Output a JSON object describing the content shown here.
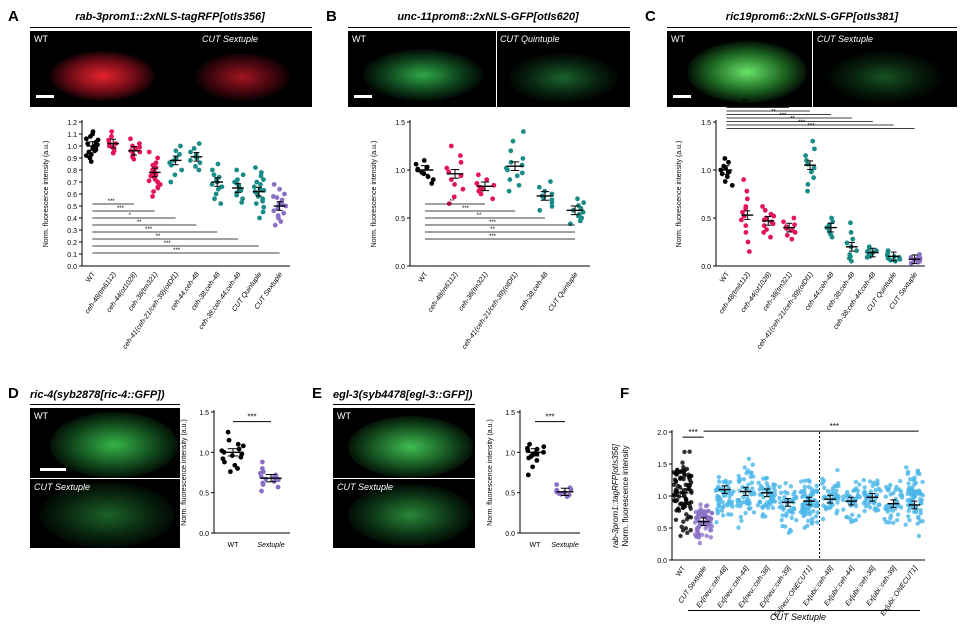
{
  "panels": {
    "A": {
      "letter": "A",
      "title": "rab-3prom1::2xNLS-tagRFP[otIs356]",
      "left": "WT",
      "right": "CUT Sextuple"
    },
    "B": {
      "letter": "B",
      "title": "unc-11prom8::2xNLS-GFP[otIs620]",
      "left": "WT",
      "right": "CUT Quintuple"
    },
    "C": {
      "letter": "C",
      "title": "ric19prom6::2xNLS-GFP[otIs381]",
      "left": "WT",
      "right": "CUT Sextuple"
    },
    "D": {
      "letter": "D",
      "title": "ric-4(syb2878[ric-4::GFP])",
      "top": "WT",
      "bottom": "CUT Sextuple"
    },
    "E": {
      "letter": "E",
      "title": "egl-3(syb4478[egl-3::GFP])",
      "top": "WT",
      "bottom": "CUT Sextuple"
    },
    "F": {
      "letter": "F",
      "footer": "CUT Sextuple"
    }
  },
  "colors": {
    "black": "#000000",
    "red": "#e5145a",
    "teal": "#1a8c88",
    "purple": "#8b6fc7",
    "lightblue": "#4ab6e8",
    "rfp": "#ff2030",
    "gfp": "#38d65a"
  },
  "chart_data": [
    {
      "panel": "A",
      "type": "scatter",
      "ylabel": "Norm. fluorescence intensity (a.u.)",
      "ylim": [
        0,
        1.2
      ],
      "yticks": [
        "0.0",
        "0.1",
        "0.2",
        "0.3",
        "0.4",
        "0.5",
        "0.6",
        "0.7",
        "0.8",
        "0.9",
        "1.0",
        "1.1",
        "1.2"
      ],
      "categories": [
        "WT",
        "ceh-48(tm6112)",
        "ceh-44(ot1028)",
        "ceh-38(tm321)",
        "ceh-41(ceh-21/ceh-39)(otDf1)",
        "ceh-44;ceh-48",
        "ceh-38;ceh-48",
        "ceh-38;ceh-44;ceh-48",
        "CUT Quintuple",
        "CUT Sextuple"
      ],
      "means": [
        1.0,
        1.02,
        0.96,
        0.78,
        0.88,
        0.91,
        0.7,
        0.65,
        0.62,
        0.5
      ],
      "colors": [
        "black",
        "red",
        "red",
        "red",
        "teal",
        "teal",
        "teal",
        "teal",
        "teal",
        "purple"
      ],
      "points": [
        [
          1.12,
          1.08,
          1.05,
          1.03,
          1.02,
          1.01,
          1.0,
          0.99,
          0.98,
          0.97,
          0.96,
          0.95,
          0.93,
          0.9,
          0.87,
          1.06,
          0.92,
          1.1
        ],
        [
          1.12,
          1.05,
          1.03,
          1.02,
          1.0,
          0.99,
          0.98,
          0.96,
          0.94,
          1.08
        ],
        [
          1.06,
          1.02,
          1.0,
          0.98,
          0.96,
          0.95,
          0.93,
          0.91,
          0.89,
          0.99
        ],
        [
          0.95,
          0.9,
          0.86,
          0.82,
          0.8,
          0.78,
          0.77,
          0.75,
          0.74,
          0.72,
          0.7,
          0.68,
          0.65,
          0.62,
          0.58,
          0.84,
          0.76,
          0.71,
          0.66
        ],
        [
          1.0,
          0.96,
          0.93,
          0.9,
          0.88,
          0.86,
          0.84,
          0.8,
          0.76,
          0.7
        ],
        [
          1.02,
          0.98,
          0.95,
          0.93,
          0.91,
          0.9,
          0.88,
          0.86,
          0.83,
          0.8
        ],
        [
          0.85,
          0.8,
          0.76,
          0.72,
          0.7,
          0.68,
          0.66,
          0.64,
          0.6,
          0.56,
          0.52,
          0.74
        ],
        [
          0.8,
          0.76,
          0.72,
          0.69,
          0.67,
          0.65,
          0.63,
          0.61,
          0.59,
          0.56,
          0.53,
          0.7
        ],
        [
          0.82,
          0.78,
          0.75,
          0.7,
          0.68,
          0.66,
          0.64,
          0.62,
          0.6,
          0.58,
          0.56,
          0.54,
          0.52,
          0.49,
          0.45,
          0.4,
          0.72,
          0.63
        ],
        [
          0.68,
          0.64,
          0.6,
          0.57,
          0.55,
          0.53,
          0.52,
          0.5,
          0.48,
          0.46,
          0.44,
          0.42,
          0.4,
          0.37,
          0.34,
          0.58,
          0.51
        ]
      ],
      "significance": [
        "***",
        "***",
        "*",
        "**",
        "***",
        "**",
        "***",
        "***"
      ]
    },
    {
      "panel": "B",
      "type": "scatter",
      "ylabel": "Norm. fluorescence intensity (a.u.)",
      "ylim": [
        0,
        1.5
      ],
      "yticks": [
        "0.0",
        "0.5",
        "1.0",
        "1.5"
      ],
      "categories": [
        "WT",
        "ceh-48(m6112)",
        "ceh-38(tm321)",
        "ceh-41(ceh-21/ceh-39)(otDf1)",
        "ceh-38;ceh-48",
        "CUT Quintuple"
      ],
      "means": [
        1.0,
        0.96,
        0.83,
        1.04,
        0.73,
        0.58
      ],
      "colors": [
        "black",
        "red",
        "red",
        "teal",
        "teal",
        "teal"
      ],
      "points": [
        [
          1.1,
          1.06,
          1.03,
          1.01,
          1.0,
          0.98,
          0.96,
          0.93,
          0.9,
          0.86
        ],
        [
          1.25,
          1.15,
          1.08,
          1.02,
          0.98,
          0.94,
          0.9,
          0.85,
          0.8,
          0.72,
          0.65
        ],
        [
          0.95,
          0.9,
          0.86,
          0.84,
          0.82,
          0.8,
          0.78,
          0.75,
          0.7
        ],
        [
          1.4,
          1.3,
          1.2,
          1.12,
          1.08,
          1.05,
          1.02,
          1.0,
          0.97,
          0.94,
          0.9,
          0.84,
          0.78
        ],
        [
          0.88,
          0.82,
          0.78,
          0.75,
          0.73,
          0.71,
          0.69,
          0.66,
          0.62,
          0.58
        ],
        [
          0.7,
          0.66,
          0.63,
          0.6,
          0.58,
          0.56,
          0.54,
          0.52,
          0.5,
          0.47,
          0.44
        ]
      ],
      "significance": [
        "**",
        "***",
        "**",
        "***",
        "**",
        "***"
      ]
    },
    {
      "panel": "C",
      "type": "scatter",
      "ylabel": "Norm. fluorescence intensity (a.u.)",
      "ylim": [
        0,
        1.5
      ],
      "yticks": [
        "0.0",
        "0.5",
        "1.0",
        "1.5"
      ],
      "categories": [
        "WT",
        "ceh-48(tm6112)",
        "ceh-44(ot1028)",
        "ceh-38(tm321)",
        "ceh-41(ceh-21/ceh-39)(otDf1)",
        "ceh-44;ceh-48",
        "ceh-38;ceh-48",
        "ceh-38;ceh-44;ceh-48",
        "CUT Quintuple",
        "CUT Sextuple"
      ],
      "means": [
        1.0,
        0.53,
        0.47,
        0.4,
        1.05,
        0.4,
        0.2,
        0.14,
        0.1,
        0.07
      ],
      "colors": [
        "black",
        "red",
        "red",
        "red",
        "teal",
        "teal",
        "teal",
        "teal",
        "teal",
        "purple"
      ],
      "points": [
        [
          1.12,
          1.08,
          1.04,
          1.02,
          1.0,
          0.98,
          0.96,
          0.93,
          0.88,
          0.84
        ],
        [
          0.9,
          0.78,
          0.7,
          0.62,
          0.56,
          0.52,
          0.48,
          0.42,
          0.35,
          0.25,
          0.15,
          0.6
        ],
        [
          0.62,
          0.58,
          0.54,
          0.5,
          0.48,
          0.46,
          0.44,
          0.42,
          0.38,
          0.35,
          0.3,
          0.52
        ],
        [
          0.5,
          0.46,
          0.43,
          0.41,
          0.4,
          0.39,
          0.37,
          0.35,
          0.32,
          0.28
        ],
        [
          1.3,
          1.22,
          1.15,
          1.1,
          1.06,
          1.02,
          0.98,
          0.92,
          0.85,
          0.78
        ],
        [
          0.5,
          0.46,
          0.43,
          0.4,
          0.38,
          0.36,
          0.33,
          0.3
        ],
        [
          0.45,
          0.35,
          0.28,
          0.24,
          0.2,
          0.16,
          0.12,
          0.1,
          0.08,
          0.05
        ],
        [
          0.2,
          0.18,
          0.16,
          0.15,
          0.14,
          0.13,
          0.12,
          0.11,
          0.1,
          0.09
        ],
        [
          0.16,
          0.14,
          0.12,
          0.11,
          0.1,
          0.09,
          0.08,
          0.07,
          0.06,
          0.05
        ],
        [
          0.12,
          0.1,
          0.09,
          0.08,
          0.07,
          0.06,
          0.05,
          0.04,
          0.03
        ]
      ],
      "significance": [
        "***",
        "*",
        "***",
        "**",
        "***",
        "**",
        "***",
        "***"
      ]
    },
    {
      "panel": "D",
      "type": "scatter",
      "ylabel": "Norm. fluorescence intensity (a.u.)",
      "ylim": [
        0,
        1.5
      ],
      "yticks": [
        "0.0",
        "0.5",
        "1.0",
        "1.5"
      ],
      "categories": [
        "WT",
        "Sextuple"
      ],
      "means": [
        1.0,
        0.68
      ],
      "colors": [
        "black",
        "purple"
      ],
      "points": [
        [
          1.25,
          1.15,
          1.08,
          1.04,
          1.02,
          1.0,
          0.98,
          0.96,
          0.94,
          0.92,
          0.88,
          0.84,
          0.8,
          0.76,
          1.1
        ],
        [
          0.88,
          0.8,
          0.76,
          0.72,
          0.7,
          0.69,
          0.68,
          0.67,
          0.66,
          0.64,
          0.62,
          0.6,
          0.57,
          0.52,
          0.74
        ]
      ],
      "significance": [
        "***"
      ]
    },
    {
      "panel": "E",
      "type": "scatter",
      "ylabel": "Norm. fluorescence intensity (a.u.)",
      "ylim": [
        0,
        1.5
      ],
      "yticks": [
        "0.0",
        "0.5",
        "1.0",
        "1.5"
      ],
      "categories": [
        "WT",
        "Sextuple"
      ],
      "means": [
        1.0,
        0.51
      ],
      "colors": [
        "black",
        "purple"
      ],
      "points": [
        [
          1.1,
          1.07,
          1.04,
          1.02,
          1.0,
          0.99,
          0.98,
          0.97,
          0.95,
          0.93,
          0.9,
          0.82,
          0.72,
          1.05
        ],
        [
          0.6,
          0.56,
          0.54,
          0.53,
          0.52,
          0.51,
          0.5,
          0.49,
          0.48,
          0.47,
          0.45
        ]
      ],
      "significance": [
        "***"
      ]
    },
    {
      "panel": "F",
      "type": "scatter",
      "ylabel": "rab-3prom1::tagRFP[otIs356]\nNorm. fluorescence intensity",
      "ylim": [
        0,
        2.0
      ],
      "yticks": [
        "0.0",
        "0.5",
        "1.0",
        "1.5",
        "2.0"
      ],
      "categories": [
        "WT",
        "CUT Sextuple",
        "Ex[neu::ceh-48]",
        "Ex[neu::ceh-44]",
        "Ex[neu::ceh-38]",
        "Ex[neu::ceh-39]",
        "Ex[neu::ONECUT1]",
        "Ex[ubi::ceh-48]",
        "Ex[ubi::ceh-44]",
        "Ex[ubi::ceh-38]",
        "Ex[ubi::ceh-39]",
        "Ex[ubi::ONECUT1]"
      ],
      "means": [
        1.05,
        0.6,
        1.1,
        1.07,
        1.05,
        0.9,
        0.92,
        0.95,
        0.92,
        0.98,
        0.88,
        0.86
      ],
      "colors": [
        "black",
        "purple",
        "lightblue",
        "lightblue",
        "lightblue",
        "lightblue",
        "lightblue",
        "lightblue",
        "lightblue",
        "lightblue",
        "lightblue",
        "lightblue"
      ],
      "npoints": [
        90,
        70,
        55,
        50,
        50,
        45,
        70,
        40,
        35,
        40,
        40,
        75
      ],
      "spread": [
        [
          0.2,
          1.85
        ],
        [
          0.2,
          1.0
        ],
        [
          0.4,
          1.6
        ],
        [
          0.45,
          1.65
        ],
        [
          0.55,
          1.45
        ],
        [
          0.35,
          1.4
        ],
        [
          0.3,
          1.5
        ],
        [
          0.5,
          1.5
        ],
        [
          0.4,
          1.4
        ],
        [
          0.45,
          1.5
        ],
        [
          0.4,
          1.4
        ],
        [
          0.3,
          1.6
        ]
      ],
      "significance": [
        "***",
        "***"
      ]
    }
  ]
}
